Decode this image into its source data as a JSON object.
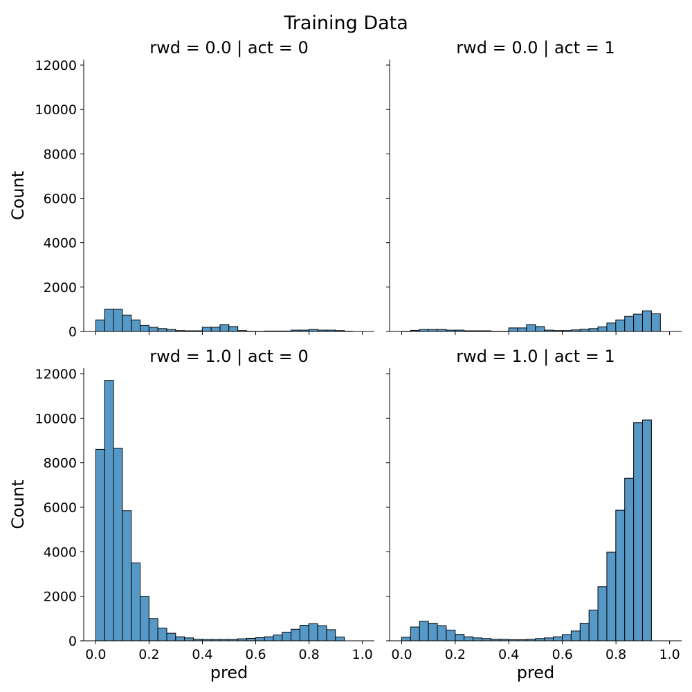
{
  "title": "Training Data",
  "bar_color": "#5799c6",
  "chart_data": [
    {
      "type": "bar",
      "title": "rwd = 0.0 | act = 0",
      "ylabel": "Count",
      "xlabel": "",
      "xlim": [
        -0.045,
        1.045
      ],
      "ylim": [
        0,
        12250
      ],
      "yticks": [
        0,
        2000,
        4000,
        6000,
        8000,
        10000,
        12000
      ],
      "xticks": [
        0.0,
        0.2,
        0.4,
        0.6,
        0.8,
        1.0
      ],
      "show_ytick_labels": true,
      "show_xtick_labels": false,
      "bin_start": 0.0,
      "bin_width": 0.0333,
      "values": [
        520,
        1000,
        1000,
        740,
        520,
        270,
        190,
        130,
        90,
        40,
        30,
        30,
        190,
        190,
        310,
        220,
        40,
        10,
        10,
        20,
        20,
        20,
        60,
        60,
        90,
        60,
        60,
        40,
        10,
        0
      ]
    },
    {
      "type": "bar",
      "title": "rwd = 0.0 | act = 1",
      "ylabel": "",
      "xlabel": "",
      "xlim": [
        -0.045,
        1.045
      ],
      "ylim": [
        0,
        12250
      ],
      "yticks": [
        0,
        2000,
        4000,
        6000,
        8000,
        10000,
        12000
      ],
      "xticks": [
        0.0,
        0.2,
        0.4,
        0.6,
        0.8,
        1.0
      ],
      "show_ytick_labels": false,
      "show_xtick_labels": false,
      "bin_start": 0.0,
      "bin_width": 0.0333,
      "values": [
        10,
        50,
        90,
        90,
        90,
        60,
        60,
        30,
        30,
        30,
        10,
        10,
        160,
        160,
        310,
        220,
        60,
        40,
        40,
        70,
        100,
        130,
        210,
        380,
        520,
        680,
        780,
        930,
        800,
        0
      ]
    },
    {
      "type": "bar",
      "title": "rwd = 1.0 | act = 0",
      "ylabel": "Count",
      "xlabel": "pred",
      "xlim": [
        -0.045,
        1.045
      ],
      "ylim": [
        0,
        12250
      ],
      "yticks": [
        0,
        2000,
        4000,
        6000,
        8000,
        10000,
        12000
      ],
      "xticks": [
        0.0,
        0.2,
        0.4,
        0.6,
        0.8,
        1.0
      ],
      "show_ytick_labels": true,
      "show_xtick_labels": true,
      "bin_start": 0.0,
      "bin_width": 0.0333,
      "values": [
        8600,
        11700,
        8650,
        5850,
        3500,
        2000,
        1000,
        570,
        340,
        180,
        130,
        70,
        60,
        60,
        60,
        60,
        90,
        110,
        140,
        180,
        260,
        390,
        520,
        700,
        770,
        680,
        500,
        170,
        0,
        0
      ]
    },
    {
      "type": "bar",
      "title": "rwd = 1.0 | act = 1",
      "ylabel": "",
      "xlabel": "pred",
      "xlim": [
        -0.045,
        1.045
      ],
      "ylim": [
        0,
        12250
      ],
      "yticks": [
        0,
        2000,
        4000,
        6000,
        8000,
        10000,
        12000
      ],
      "xticks": [
        0.0,
        0.2,
        0.4,
        0.6,
        0.8,
        1.0
      ],
      "show_ytick_labels": false,
      "show_xtick_labels": true,
      "bin_start": 0.0,
      "bin_width": 0.0333,
      "values": [
        160,
        620,
        880,
        790,
        680,
        480,
        290,
        180,
        130,
        100,
        70,
        70,
        50,
        50,
        70,
        100,
        130,
        180,
        280,
        440,
        790,
        1380,
        2430,
        3980,
        5870,
        7300,
        9800,
        9920,
        0,
        0
      ]
    }
  ]
}
